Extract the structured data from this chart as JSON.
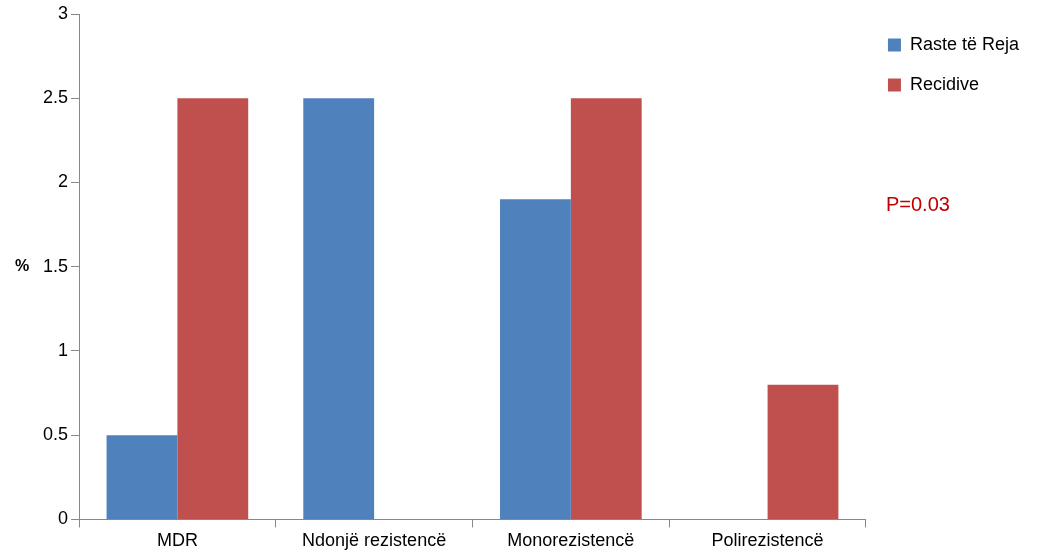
{
  "chart_data": {
    "type": "bar",
    "ylabel": "%",
    "categories": [
      "MDR",
      "Ndonjë rezistencë",
      "Monorezistencë",
      "Polirezistencë"
    ],
    "series": [
      {
        "name": "Raste të Reja",
        "color": "#4f81bd",
        "values": [
          0.5,
          2.5,
          1.9,
          0
        ]
      },
      {
        "name": "Recidive",
        "color": "#c0504d",
        "values": [
          2.5,
          0,
          2.5,
          0.8
        ]
      }
    ],
    "ylim": [
      0,
      3
    ],
    "yticks": [
      0,
      0.5,
      1,
      1.5,
      2,
      2.5,
      3
    ],
    "grid": false,
    "legend": "top right",
    "annotations": [
      "P=0.03"
    ]
  }
}
